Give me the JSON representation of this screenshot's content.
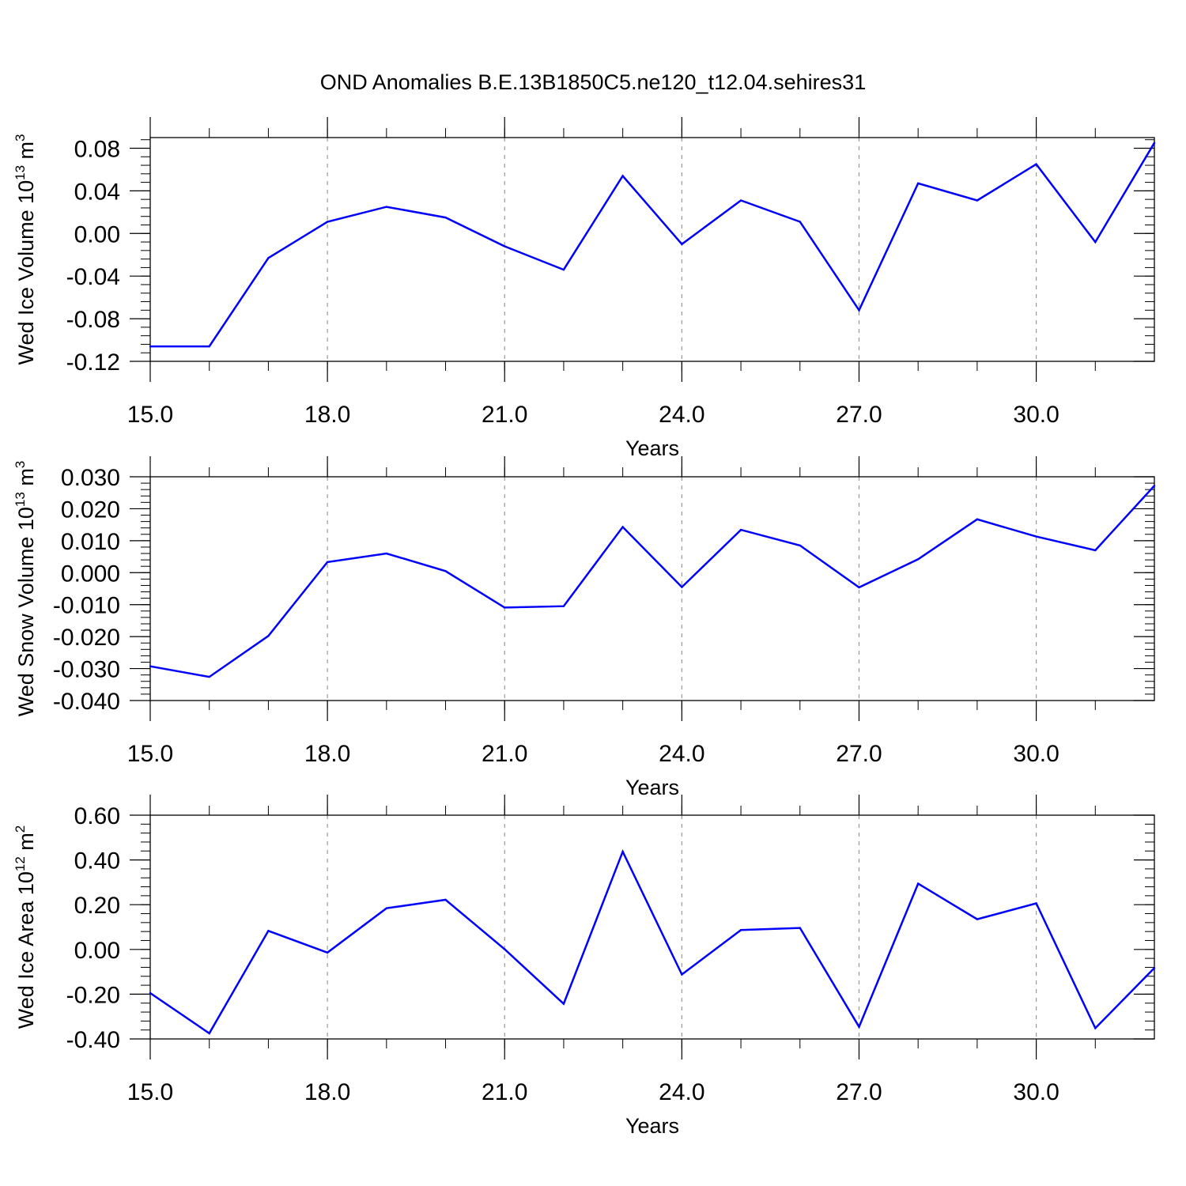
{
  "title": "OND Anomalies B.E.13B1850C5.ne120_t12.04.sehires31",
  "colors": {
    "line": "#0000ff",
    "axis": "#000000",
    "grid": "#999999",
    "background": "#ffffff"
  },
  "chart_data": [
    {
      "type": "line",
      "ylabel": {
        "text": "Wed Ice Volume 10",
        "exp": "13",
        "unit": " m",
        "unit_exp": "3"
      },
      "xlabel": "Years",
      "xlim": [
        15,
        32
      ],
      "ylim": [
        -0.12,
        0.09
      ],
      "x_ticks": [
        "15.0",
        "18.0",
        "21.0",
        "24.0",
        "27.0",
        "30.0"
      ],
      "y_ticks": [
        "0.08",
        "0.04",
        "0.00",
        "-0.04",
        "-0.08",
        "-0.12"
      ],
      "grid": "vertical dashed at major x ticks",
      "x": [
        15,
        16,
        17,
        18,
        19,
        20,
        21,
        22,
        23,
        24,
        25,
        26,
        27,
        28,
        29,
        30,
        31,
        32
      ],
      "values": [
        -0.106,
        -0.106,
        -0.023,
        0.011,
        0.025,
        0.015,
        -0.012,
        -0.034,
        0.054,
        -0.01,
        0.031,
        0.011,
        -0.072,
        0.047,
        0.031,
        0.065,
        -0.008,
        0.085
      ]
    },
    {
      "type": "line",
      "ylabel": {
        "text": "Wed Snow Volume 10",
        "exp": "13",
        "unit": " m",
        "unit_exp": "3"
      },
      "xlabel": "Years",
      "xlim": [
        15,
        32
      ],
      "ylim": [
        -0.04,
        0.03
      ],
      "x_ticks": [
        "15.0",
        "18.0",
        "21.0",
        "24.0",
        "27.0",
        "30.0"
      ],
      "y_ticks": [
        "0.030",
        "0.020",
        "0.010",
        "0.000",
        "-0.010",
        "-0.020",
        "-0.030",
        "-0.040"
      ],
      "grid": "vertical dashed at major x ticks",
      "x": [
        15,
        16,
        17,
        18,
        19,
        20,
        21,
        22,
        23,
        24,
        25,
        26,
        27,
        28,
        29,
        30,
        31,
        32
      ],
      "values": [
        -0.0293,
        -0.0326,
        -0.0198,
        0.0033,
        0.006,
        0.0005,
        -0.0109,
        -0.0105,
        0.0143,
        -0.0045,
        0.0134,
        0.0085,
        -0.0046,
        0.0042,
        0.0167,
        0.0113,
        0.007,
        0.0272
      ]
    },
    {
      "type": "line",
      "ylabel": {
        "text": "Wed Ice Area 10",
        "exp": "12",
        "unit": " m",
        "unit_exp": "2"
      },
      "xlabel": "Years",
      "xlim": [
        15,
        32
      ],
      "ylim": [
        -0.4,
        0.6
      ],
      "x_ticks": [
        "15.0",
        "18.0",
        "21.0",
        "24.0",
        "27.0",
        "30.0"
      ],
      "y_ticks": [
        "0.60",
        "0.40",
        "0.20",
        "0.00",
        "-0.20",
        "-0.40"
      ],
      "grid": "vertical dashed at major x ticks",
      "x": [
        15,
        16,
        17,
        18,
        19,
        20,
        21,
        22,
        23,
        24,
        25,
        26,
        27,
        28,
        29,
        30,
        31,
        32
      ],
      "values": [
        -0.195,
        -0.375,
        0.083,
        -0.014,
        0.184,
        0.222,
        0.001,
        -0.243,
        0.437,
        -0.112,
        0.087,
        0.096,
        -0.346,
        0.294,
        0.135,
        0.206,
        -0.352,
        -0.083
      ]
    }
  ]
}
